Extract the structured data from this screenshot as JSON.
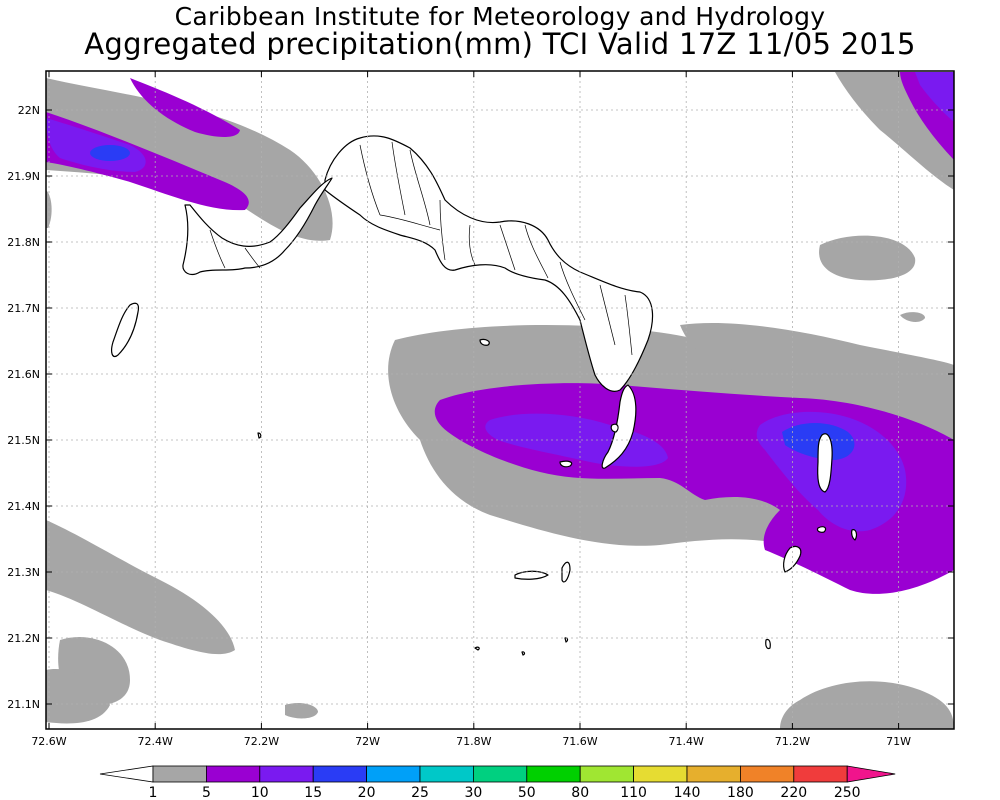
{
  "header": {
    "org": "Caribbean Institute for Meteorology and Hydrology",
    "product": "Aggregated precipitation(mm) TCI Valid 17Z 11/05 2015"
  },
  "axes": {
    "lon_ticks": [
      "72.6W",
      "72.4W",
      "72.2W",
      "72W",
      "71.8W",
      "71.6W",
      "71.4W",
      "71.2W",
      "71W"
    ],
    "lat_ticks": [
      "22N",
      "21.9N",
      "21.8N",
      "21.7N",
      "21.6N",
      "21.5N",
      "21.4N",
      "21.3N",
      "21.2N",
      "21.1N"
    ],
    "grid": true
  },
  "colorbar": {
    "labels": [
      "1",
      "5",
      "10",
      "15",
      "20",
      "25",
      "30",
      "50",
      "80",
      "110",
      "140",
      "180",
      "220",
      "250"
    ],
    "colors": [
      "#a6a6a6",
      "#9a00d2",
      "#7a1af0",
      "#2a3cf5",
      "#00a0f8",
      "#00c8c8",
      "#00d080",
      "#00d000",
      "#a0e632",
      "#e6dc32",
      "#e6af2d",
      "#f08228",
      "#f03c3c",
      "#f0148c"
    ],
    "under_color": "#ffffff",
    "over_color": "#f0148c"
  },
  "palette": {
    "c1": "#a6a6a6",
    "c5": "#9a00d2",
    "c10": "#7a1af0",
    "c15": "#2a3cf5"
  }
}
